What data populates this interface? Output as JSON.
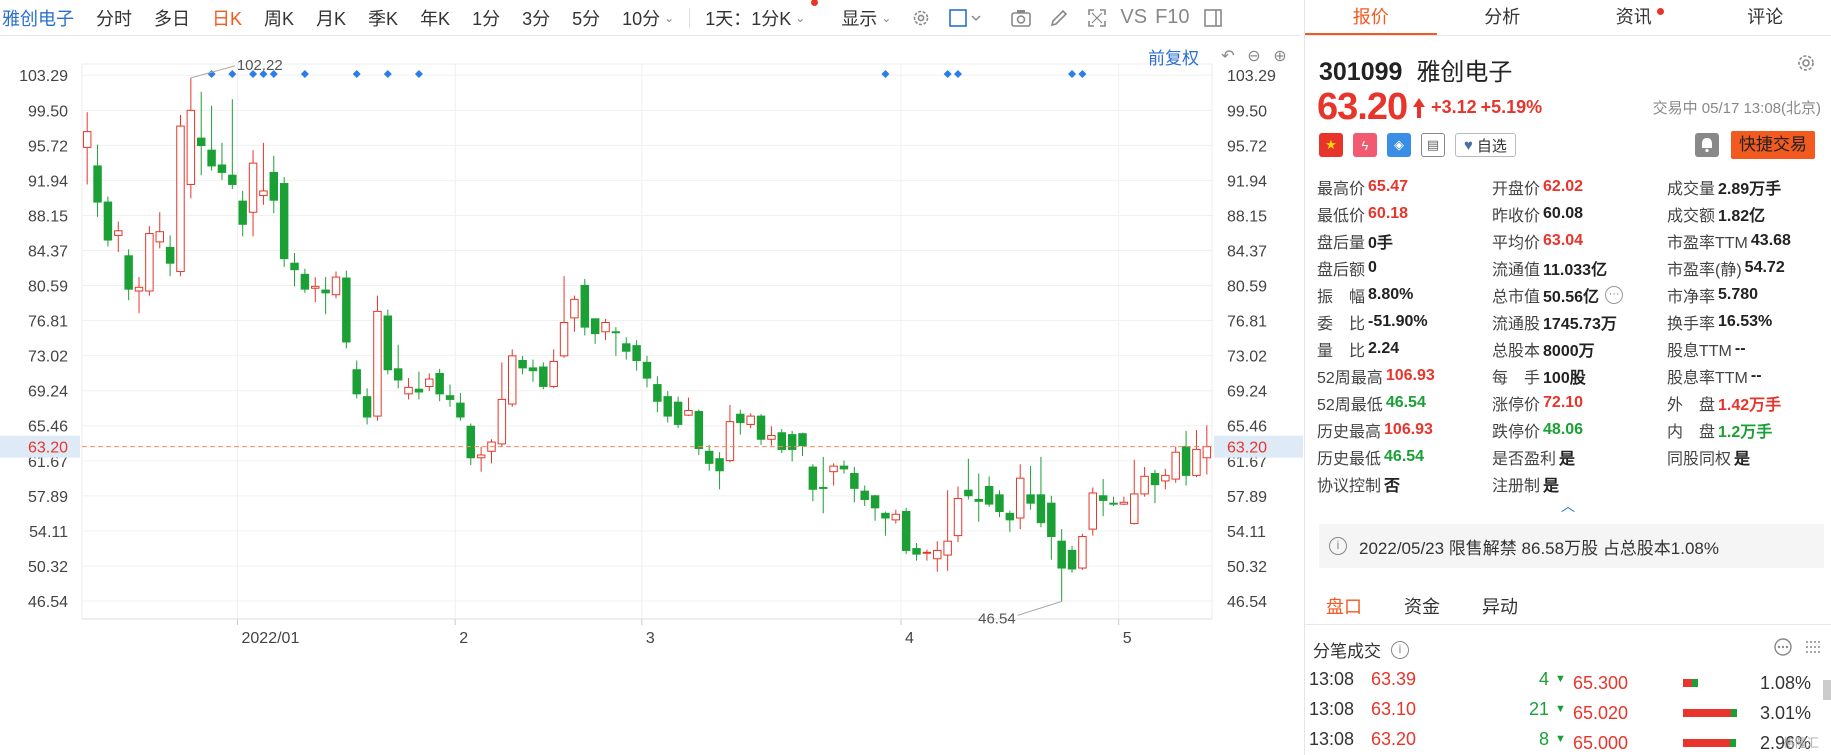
{
  "toolbar": {
    "stock_name": "雅创电子",
    "periods": [
      "分时",
      "多日",
      "日K",
      "周K",
      "月K",
      "季K",
      "年K",
      "1分",
      "3分",
      "5分",
      "10分"
    ],
    "active_period": "日K",
    "multi_label": "1天：1分K",
    "display_label": "显示",
    "vs_label": "VS",
    "f10_label": "F10"
  },
  "chart": {
    "restore_label": "前复权",
    "y_ticks": [
      "103.29",
      "99.50",
      "95.72",
      "91.94",
      "88.15",
      "84.37",
      "80.59",
      "76.81",
      "73.02",
      "69.24",
      "65.46",
      "61.67",
      "57.89",
      "54.11",
      "50.32",
      "46.54"
    ],
    "current_price_tag": "63.20",
    "x_labels": [
      "2022/01",
      "2",
      "3",
      "4",
      "5"
    ],
    "high_annotation": "102.22",
    "low_annotation": "46.54"
  },
  "chart_data": {
    "type": "candlestick",
    "ylim": [
      44.6,
      104.5
    ],
    "candles": [
      [
        95.5,
        97.2,
        99.3,
        91.5
      ],
      [
        93.5,
        89.6,
        95.8,
        88.0
      ],
      [
        89.6,
        85.5,
        90.2,
        84.8
      ],
      [
        86.0,
        86.5,
        87.5,
        84.2
      ],
      [
        83.8,
        80.2,
        84.5,
        79.0
      ],
      [
        80.0,
        80.4,
        81.5,
        77.6
      ],
      [
        80.0,
        86.2,
        87.0,
        79.5
      ],
      [
        85.3,
        86.4,
        88.5,
        84.6
      ],
      [
        84.7,
        83.0,
        86.0,
        81.6
      ],
      [
        82.1,
        97.8,
        99.0,
        81.6
      ],
      [
        91.5,
        99.5,
        103.0,
        90.0
      ],
      [
        96.5,
        95.7,
        101.5,
        92.5
      ],
      [
        95.2,
        93.5,
        100.0,
        93.0
      ],
      [
        93.6,
        92.8,
        96.0,
        92.0
      ],
      [
        92.5,
        91.5,
        100.7,
        91.0
      ],
      [
        89.7,
        87.2,
        90.8,
        85.9
      ],
      [
        88.5,
        93.8,
        95.2,
        85.9
      ],
      [
        90.3,
        90.8,
        96.0,
        89.3
      ],
      [
        92.8,
        89.8,
        94.6,
        88.4
      ],
      [
        91.6,
        83.5,
        92.3,
        82.6
      ],
      [
        83.0,
        82.3,
        84.1,
        80.5
      ],
      [
        81.8,
        80.2,
        82.4,
        79.8
      ],
      [
        80.3,
        80.5,
        81.5,
        78.8
      ],
      [
        80.1,
        79.8,
        81.5,
        77.5
      ],
      [
        79.6,
        81.5,
        82.1,
        79.2
      ],
      [
        81.4,
        74.5,
        82.2,
        73.8
      ],
      [
        71.5,
        68.9,
        72.5,
        68.4
      ],
      [
        68.6,
        66.4,
        69.5,
        65.6
      ],
      [
        66.5,
        77.8,
        79.5,
        66.0
      ],
      [
        77.3,
        71.5,
        78.0,
        71.0
      ],
      [
        71.6,
        70.4,
        74.2,
        69.5
      ],
      [
        68.9,
        69.6,
        70.6,
        68.3
      ],
      [
        69.4,
        69.1,
        71.3,
        68.3
      ],
      [
        69.7,
        70.5,
        71.1,
        69.2
      ],
      [
        71.1,
        68.9,
        71.6,
        68.1
      ],
      [
        68.7,
        68.3,
        69.9,
        67.5
      ],
      [
        67.9,
        66.4,
        69.0,
        66.0
      ],
      [
        65.4,
        62.0,
        65.7,
        61.2
      ],
      [
        62.0,
        62.3,
        63.2,
        60.5
      ],
      [
        62.7,
        63.7,
        64.0,
        61.4
      ],
      [
        63.5,
        68.3,
        72.3,
        63.2
      ],
      [
        67.8,
        73.0,
        73.7,
        67.5
      ],
      [
        72.5,
        71.7,
        73.0,
        71.0
      ],
      [
        71.7,
        71.4,
        72.6,
        70.2
      ],
      [
        71.8,
        69.7,
        72.3,
        69.4
      ],
      [
        69.7,
        72.4,
        73.7,
        69.5
      ],
      [
        73.0,
        76.6,
        81.6,
        72.8
      ],
      [
        77.1,
        79.1,
        79.5,
        75.6
      ],
      [
        80.6,
        76.1,
        81.3,
        75.2
      ],
      [
        77.0,
        75.4,
        76.9,
        74.3
      ],
      [
        75.6,
        76.6,
        77.0,
        74.7
      ],
      [
        75.6,
        75.5,
        76.1,
        73.0
      ],
      [
        74.3,
        73.5,
        75.0,
        72.6
      ],
      [
        74.1,
        72.5,
        74.7,
        71.4
      ],
      [
        72.3,
        70.6,
        73.0,
        69.6
      ],
      [
        69.9,
        68.1,
        70.8,
        66.9
      ],
      [
        68.6,
        66.5,
        69.2,
        65.8
      ],
      [
        68.0,
        65.6,
        68.6,
        65.2
      ],
      [
        66.6,
        67.1,
        68.5,
        66.5
      ],
      [
        67.0,
        63.0,
        67.2,
        62.3
      ],
      [
        62.7,
        61.4,
        63.4,
        60.6
      ],
      [
        61.9,
        60.6,
        62.6,
        58.6
      ],
      [
        61.7,
        65.9,
        67.7,
        61.5
      ],
      [
        66.7,
        65.8,
        67.2,
        64.5
      ],
      [
        65.6,
        66.5,
        66.8,
        65.2
      ],
      [
        66.5,
        64.0,
        66.7,
        63.4
      ],
      [
        64.0,
        64.4,
        65.4,
        63.3
      ],
      [
        64.7,
        62.9,
        65.1,
        62.5
      ],
      [
        64.5,
        62.9,
        64.9,
        61.6
      ],
      [
        64.6,
        63.3,
        64.7,
        62.2
      ],
      [
        61.0,
        58.6,
        61.3,
        57.3
      ],
      [
        58.8,
        58.7,
        62.1,
        56.0
      ],
      [
        60.5,
        61.1,
        61.4,
        59.0
      ],
      [
        61.1,
        60.8,
        61.7,
        60.3
      ],
      [
        60.3,
        58.7,
        61.0,
        57.2
      ],
      [
        58.4,
        57.5,
        59.0,
        56.8
      ],
      [
        57.9,
        56.6,
        58.0,
        55.2
      ],
      [
        56.0,
        55.5,
        56.2,
        53.6
      ],
      [
        55.3,
        55.9,
        56.4,
        54.9
      ],
      [
        56.2,
        52.0,
        56.6,
        51.6
      ],
      [
        52.2,
        51.6,
        52.8,
        50.9
      ],
      [
        51.7,
        51.8,
        52.1,
        50.9
      ],
      [
        51.1,
        52.0,
        53.0,
        49.7
      ],
      [
        51.5,
        53.0,
        58.5,
        49.8
      ],
      [
        53.6,
        57.6,
        58.9,
        52.9
      ],
      [
        58.5,
        57.9,
        61.9,
        57.5
      ],
      [
        57.5,
        57.3,
        60.3,
        55.1
      ],
      [
        58.9,
        57.0,
        60.0,
        56.7
      ],
      [
        58.0,
        56.2,
        58.5,
        55.6
      ],
      [
        56.0,
        55.3,
        56.3,
        54.0
      ],
      [
        55.5,
        59.8,
        61.3,
        54.3
      ],
      [
        58.0,
        57.1,
        61.1,
        56.4
      ],
      [
        58.0,
        55.0,
        62.1,
        54.5
      ],
      [
        57.1,
        53.5,
        57.9,
        51.0
      ],
      [
        53.0,
        50.1,
        54.3,
        46.5
      ],
      [
        52.0,
        50.0,
        52.5,
        49.6
      ],
      [
        50.1,
        53.5,
        53.8,
        49.9
      ],
      [
        54.3,
        58.2,
        58.8,
        53.6
      ],
      [
        57.9,
        57.4,
        59.7,
        55.7
      ],
      [
        57.1,
        57.0,
        57.8,
        56.8
      ],
      [
        57.0,
        57.2,
        57.8,
        56.9
      ],
      [
        54.9,
        58.1,
        61.8,
        54.8
      ],
      [
        58.1,
        60.0,
        61.0,
        57.8
      ],
      [
        60.3,
        59.1,
        60.7,
        57.1
      ],
      [
        59.5,
        60.1,
        60.8,
        58.6
      ],
      [
        59.7,
        62.6,
        63.2,
        59.3
      ],
      [
        63.2,
        60.1,
        64.9,
        59.0
      ],
      [
        60.1,
        62.9,
        65.0,
        59.9
      ],
      [
        62.0,
        63.2,
        65.5,
        60.2
      ]
    ],
    "marker_slots": [
      12,
      14,
      16,
      17,
      18,
      21,
      26,
      29,
      32,
      77,
      83,
      84,
      95,
      96
    ]
  },
  "panel": {
    "tabs": [
      "报价",
      "分析",
      "资讯",
      "评论"
    ],
    "code": "301099",
    "name": "雅创电子",
    "price": "63.20",
    "change": "+3.12",
    "change_pct": "+5.19%",
    "status_time": "交易中 05/17 13:08(北京)",
    "watch_label": "自选",
    "quick_trade_label": "快捷交易",
    "stats": [
      {
        "label": "最高价",
        "value": "65.47",
        "color": "red"
      },
      {
        "label": "开盘价",
        "value": "62.02",
        "color": "red"
      },
      {
        "label": "成交量",
        "value": "2.89万手",
        "color": ""
      },
      {
        "label": "最低价",
        "value": "60.18",
        "color": "red"
      },
      {
        "label": "昨收价",
        "value": "60.08",
        "color": ""
      },
      {
        "label": "成交额",
        "value": "1.82亿",
        "color": ""
      },
      {
        "label": "盘后量",
        "value": "0手",
        "color": ""
      },
      {
        "label": "平均价",
        "value": "63.04",
        "color": "red"
      },
      {
        "label": "市盈率TTM",
        "value": "43.68",
        "color": ""
      },
      {
        "label": "盘后额",
        "value": "0",
        "color": ""
      },
      {
        "label": "流通值",
        "value": "11.033亿",
        "color": ""
      },
      {
        "label": "市盈率(静)",
        "value": "54.72",
        "color": ""
      },
      {
        "label": "振　幅",
        "value": "8.80%",
        "color": ""
      },
      {
        "label": "总市值",
        "value": "50.56亿",
        "color": ""
      },
      {
        "label": "市净率",
        "value": "5.780",
        "color": ""
      },
      {
        "label": "委　比",
        "value": "-51.90%",
        "color": ""
      },
      {
        "label": "流通股",
        "value": "1745.73万",
        "color": ""
      },
      {
        "label": "换手率",
        "value": "16.53%",
        "color": ""
      },
      {
        "label": "量　比",
        "value": "2.24",
        "color": ""
      },
      {
        "label": "总股本",
        "value": "8000万",
        "color": ""
      },
      {
        "label": "股息TTM",
        "value": "--",
        "color": ""
      },
      {
        "label": "52周最高",
        "value": "106.93",
        "color": "red"
      },
      {
        "label": "每　手",
        "value": "100股",
        "color": ""
      },
      {
        "label": "股息率TTM",
        "value": "--",
        "color": ""
      },
      {
        "label": "52周最低",
        "value": "46.54",
        "color": "green"
      },
      {
        "label": "涨停价",
        "value": "72.10",
        "color": "red"
      },
      {
        "label": "外　盘",
        "value": "1.42万手",
        "color": "red"
      },
      {
        "label": "历史最高",
        "value": "106.93",
        "color": "red"
      },
      {
        "label": "跌停价",
        "value": "48.06",
        "color": "green"
      },
      {
        "label": "内　盘",
        "value": "1.2万手",
        "color": "green"
      },
      {
        "label": "历史最低",
        "value": "46.54",
        "color": "green"
      },
      {
        "label": "是否盈利",
        "value": "是",
        "color": ""
      },
      {
        "label": "同股同权",
        "value": "是",
        "color": ""
      },
      {
        "label": "协议控制",
        "value": "否",
        "color": ""
      },
      {
        "label": "注册制",
        "value": "是",
        "color": ""
      },
      {
        "label": "",
        "value": "",
        "color": ""
      }
    ],
    "notice": "2022/05/23  限售解禁 86.58万股 占总股本1.08%",
    "subtabs": [
      "盘口",
      "资金",
      "异动"
    ],
    "tick_title": "分笔成交",
    "ticks": [
      {
        "time": "13:08",
        "price": "63.39",
        "vol": "4"
      },
      {
        "time": "13:08",
        "price": "63.10",
        "vol": "21"
      },
      {
        "time": "13:08",
        "price": "63.20",
        "vol": "8"
      }
    ],
    "depth": [
      {
        "price": "65.300",
        "pct": "1.08%",
        "fill": 0.25
      },
      {
        "price": "65.020",
        "pct": "3.01%",
        "fill": 0.9
      },
      {
        "price": "65.000",
        "pct": "2.96%",
        "fill": 0.88
      }
    ],
    "watermark": "格隆汇"
  },
  "colors": {
    "accent": "#f25a1f",
    "up": "#e8352b",
    "down": "#1aa035",
    "link": "#2b6fd1"
  }
}
